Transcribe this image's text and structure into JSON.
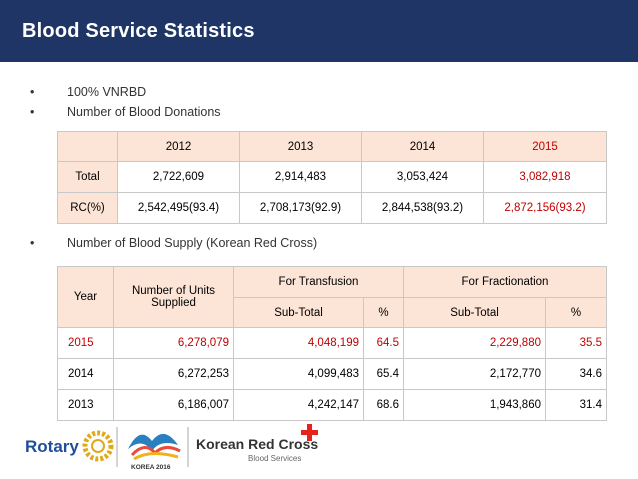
{
  "header": {
    "title": "Blood Service Statistics"
  },
  "bullets": [
    "100%  VNRBD",
    "Number of Blood Donations",
    "Number of Blood Supply (Korean Red Cross)"
  ],
  "donations_table": {
    "columns": [
      {
        "text": "2012",
        "color": "#000000"
      },
      {
        "text": "2013",
        "color": "#000000"
      },
      {
        "text": "2014",
        "color": "#000000"
      },
      {
        "text": "2015",
        "color": "#c00000"
      }
    ],
    "rows": [
      {
        "label": "Total",
        "cells": [
          "2,722,609",
          "2,914,483",
          "3,053,424",
          "3,082,918"
        ]
      },
      {
        "label": "RC(%)",
        "cells": [
          "2,542,495(93.4)",
          "2,708,173(92.9)",
          "2,844,538(93.2)",
          "2,872,156(93.2)"
        ]
      }
    ]
  },
  "supply_table": {
    "year": "Year",
    "units": "Number of Units Supplied",
    "transfusion": "For Transfusion",
    "transfusion_columns": [
      "Sub-Total",
      "%"
    ],
    "fractionation": "For Fractionation",
    "fractionation_columns": [
      "Sub-Total",
      "%"
    ],
    "rows": [
      {
        "color": "#c00000",
        "cells": [
          "2015",
          "6,278,079",
          "4,048,199",
          "64.5",
          "2,229,880",
          "35.5"
        ]
      },
      {
        "color": "#000000",
        "cells": [
          "2014",
          "6,272,253",
          "4,099,483",
          "65.4",
          "2,172,770",
          "34.6"
        ]
      },
      {
        "color": "#000000",
        "cells": [
          "2013",
          "6,186,007",
          "4,242,147",
          "68.6",
          "1,943,860",
          "31.4"
        ]
      }
    ]
  },
  "footer": {
    "rotary": "Rotary",
    "korea": "KOREA 2016",
    "red_cross": "Korean Red Cross",
    "blood_services": "Blood Services"
  }
}
